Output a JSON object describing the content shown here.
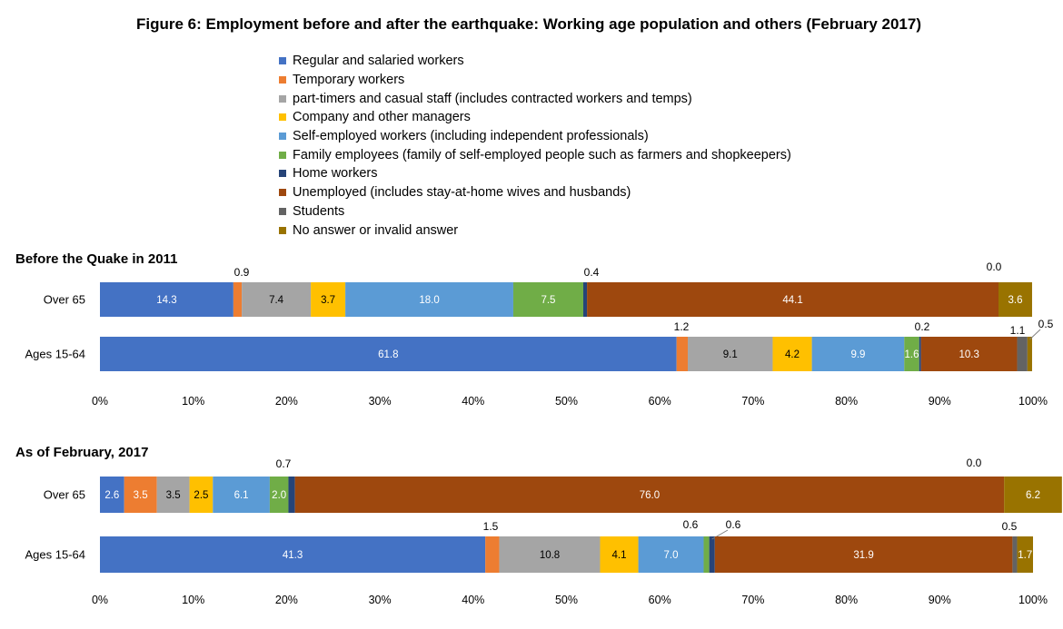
{
  "title": "Figure 6: Employment before and after the earthquake: Working age population and others (February 2017)",
  "legend": [
    {
      "label": "Regular and salaried workers",
      "color": "#4472C4"
    },
    {
      "label": "Temporary workers",
      "color": "#ED7D31"
    },
    {
      "label": "part-timers and casual staff (includes contracted workers and temps)",
      "color": "#A5A5A5"
    },
    {
      "label": "Company and other managers",
      "color": "#FFC000"
    },
    {
      "label": "Self-employed workers (including independent professionals)",
      "color": "#5B9BD5"
    },
    {
      "label": "Family employees (family of self-employed people such as farmers and shopkeepers)",
      "color": "#70AD47"
    },
    {
      "label": "Home workers",
      "color": "#264478"
    },
    {
      "label": "Unemployed (includes stay-at-home wives and husbands)",
      "color": "#9E480E"
    },
    {
      "label": "Students",
      "color": "#636363"
    },
    {
      "label": "No answer or invalid answer",
      "color": "#997300"
    }
  ],
  "chart_data": [
    {
      "type": "bar",
      "orientation": "horizontal",
      "stacked": "percent",
      "title": "Before the Quake in 2011",
      "categories": [
        "Over 65",
        "Ages 15-64"
      ],
      "xlim": [
        0,
        100
      ],
      "x_ticks": [
        "0%",
        "10%",
        "20%",
        "30%",
        "40%",
        "50%",
        "60%",
        "70%",
        "80%",
        "90%",
        "100%"
      ],
      "series": [
        {
          "name": "Regular and salaried workers",
          "values": [
            14.3,
            61.8
          ]
        },
        {
          "name": "Temporary workers",
          "values": [
            0.9,
            1.2
          ]
        },
        {
          "name": "part-timers and casual staff (includes contracted workers and temps)",
          "values": [
            7.4,
            9.1
          ]
        },
        {
          "name": "Company and other managers",
          "values": [
            3.7,
            4.2
          ]
        },
        {
          "name": "Self-employed workers (including independent professionals)",
          "values": [
            18.0,
            9.9
          ]
        },
        {
          "name": "Family employees (family of self-employed people such as farmers and shopkeepers)",
          "values": [
            7.5,
            1.6
          ]
        },
        {
          "name": "Home workers",
          "values": [
            0.4,
            0.2
          ]
        },
        {
          "name": "Unemployed (includes stay-at-home wives and husbands)",
          "values": [
            44.1,
            10.3
          ]
        },
        {
          "name": "Students",
          "values": [
            0.0,
            1.1
          ]
        },
        {
          "name": "No answer or invalid answer",
          "values": [
            3.6,
            0.5
          ]
        }
      ],
      "labels": [
        [
          "14.3",
          "0.9",
          "7.4",
          "3.7",
          "18.0",
          "7.5",
          "0.4",
          "44.1",
          "0.0",
          "3.6"
        ],
        [
          "61.8",
          "1.2",
          "9.1",
          "4.2",
          "9.9",
          "1.6",
          "0.2",
          "10.3",
          "1.1",
          "0.5"
        ]
      ]
    },
    {
      "type": "bar",
      "orientation": "horizontal",
      "stacked": "percent",
      "title": "As of February, 2017",
      "categories": [
        "Over 65",
        "Ages 15-64"
      ],
      "xlim": [
        0,
        100
      ],
      "x_ticks": [
        "0%",
        "10%",
        "20%",
        "30%",
        "40%",
        "50%",
        "60%",
        "70%",
        "80%",
        "90%",
        "100%"
      ],
      "series": [
        {
          "name": "Regular and salaried workers",
          "values": [
            2.6,
            41.3
          ]
        },
        {
          "name": "Temporary workers",
          "values": [
            3.5,
            1.5
          ]
        },
        {
          "name": "part-timers and casual staff (includes contracted workers and temps)",
          "values": [
            3.5,
            10.8
          ]
        },
        {
          "name": "Company and other managers",
          "values": [
            2.5,
            4.1
          ]
        },
        {
          "name": "Self-employed workers (including independent professionals)",
          "values": [
            6.1,
            7.0
          ]
        },
        {
          "name": "Family employees (family of self-employed people such as farmers and shopkeepers)",
          "values": [
            2.0,
            0.6
          ]
        },
        {
          "name": "Home workers",
          "values": [
            0.7,
            0.6
          ]
        },
        {
          "name": "Unemployed (includes stay-at-home wives and husbands)",
          "values": [
            76.0,
            31.9
          ]
        },
        {
          "name": "Students",
          "values": [
            0.0,
            0.5
          ]
        },
        {
          "name": "No answer or invalid answer",
          "values": [
            6.2,
            1.7
          ]
        }
      ],
      "labels": [
        [
          "2.6",
          "3.5",
          "3.5",
          "2.5",
          "6.1",
          "2.0",
          "0.7",
          "76.0",
          "0.0",
          "6.2"
        ],
        [
          "41.3",
          "1.5",
          "10.8",
          "4.1",
          "7.0",
          "0.6",
          "0.6",
          "31.9",
          "0.5",
          "1.7"
        ]
      ]
    }
  ]
}
